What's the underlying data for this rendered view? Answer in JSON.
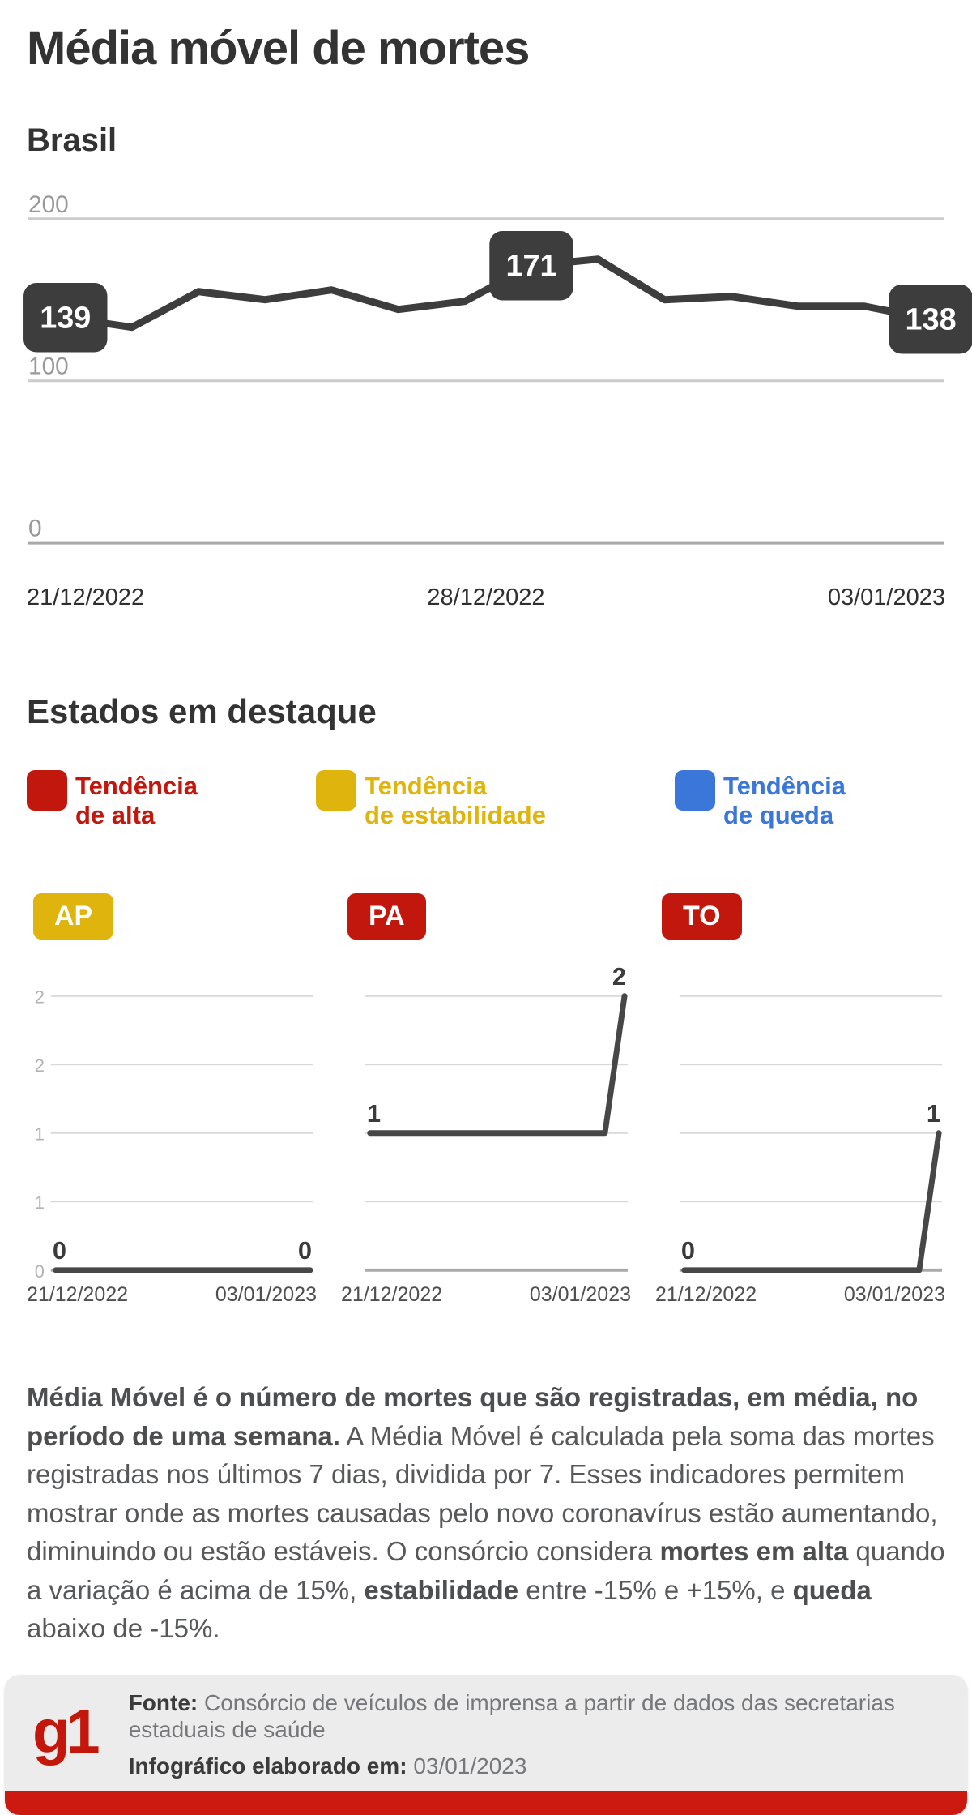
{
  "page": {
    "title": "Média móvel de mortes"
  },
  "colors": {
    "red": "#c2170d",
    "yellow": "#dfb40d",
    "blue": "#3b77d9",
    "line": "#3d3d3d",
    "grid_light": "#cccccc",
    "grid_axis": "#a9a9a9",
    "tick": "#999999",
    "mini_tick": "#b3b3b3",
    "label_dark": "#3b3b3b",
    "footer_bar": "#cc1a10",
    "logo_red": "#c4170c"
  },
  "brasil": {
    "heading": "Brasil",
    "x_labels": [
      "21/12/2022",
      "28/12/2022",
      "03/01/2023"
    ]
  },
  "estados": {
    "heading": "Estados em destaque",
    "legend": [
      {
        "label_line1": "Tendência",
        "label_line2": "de alta",
        "color": "#c2170d"
      },
      {
        "label_line1": "Tendência",
        "label_line2": "de estabilidade",
        "color": "#dfb40d"
      },
      {
        "label_line1": "Tendência",
        "label_line2": "de queda",
        "color": "#3b77d9"
      }
    ],
    "items": [
      {
        "code": "AP",
        "badge_color": "#dfb40d",
        "trend": "estabilidade"
      },
      {
        "code": "PA",
        "badge_color": "#c2170d",
        "trend": "alta"
      },
      {
        "code": "TO",
        "badge_color": "#c2170d",
        "trend": "alta"
      }
    ],
    "x_labels": [
      "21/12/2022",
      "03/01/2023"
    ]
  },
  "about": {
    "segments": [
      {
        "text": "Média Móvel é o número de mortes que são registradas, em média, no período de uma semana.",
        "bold": true
      },
      {
        "text": " A Média Móvel é calculada pela soma das mortes registradas nos últimos 7 dias, dividida por 7. Esses indicadores permitem mostrar onde as mortes causadas pelo novo coronavírus estão aumentando, diminuindo ou estão estáveis. O consórcio considera ",
        "bold": false
      },
      {
        "text": "mortes em alta",
        "bold": true
      },
      {
        "text": " quando a variação é acima de 15%, ",
        "bold": false
      },
      {
        "text": "estabilidade",
        "bold": true
      },
      {
        "text": " entre -15% e +15%, e ",
        "bold": false
      },
      {
        "text": "queda",
        "bold": true
      },
      {
        "text": " abaixo de -15%.",
        "bold": false
      }
    ]
  },
  "footer": {
    "logo": "g1",
    "fonte_label": "Fonte:",
    "fonte_text": "Consórcio de veículos de imprensa a partir de dados das secretarias estaduais de saúde",
    "info_label": "Infográfico elaborado em:",
    "info_value": "03/01/2023"
  },
  "chart_data": [
    {
      "type": "line",
      "title": "Brasil",
      "x_labels": [
        "21/12/2022",
        "28/12/2022",
        "03/01/2023"
      ],
      "ylim": [
        0,
        200
      ],
      "yticks": [
        200,
        100,
        0
      ],
      "ytick_labels": [
        "200",
        "100",
        "0"
      ],
      "values": [
        139,
        133,
        155,
        150,
        156,
        144,
        149,
        171,
        175,
        150,
        152,
        146,
        146,
        138
      ],
      "point_labels": [
        {
          "index": 0,
          "label": "139"
        },
        {
          "index": 7,
          "label": "171"
        },
        {
          "index": 13,
          "label": "138"
        }
      ],
      "grid": true,
      "legend_position": "none"
    },
    {
      "type": "line",
      "title": "AP",
      "trend": "estabilidade",
      "x_labels": [
        "21/12/2022",
        "03/01/2023"
      ],
      "ylim": [
        0,
        2
      ],
      "yticks": [
        2,
        1.5,
        1,
        0.5,
        0
      ],
      "ytick_labels": [
        "2",
        "2",
        "1",
        "1",
        "0"
      ],
      "show_yticks": true,
      "values": [
        0,
        0,
        0,
        0,
        0,
        0,
        0,
        0,
        0,
        0,
        0,
        0,
        0,
        0
      ],
      "start_label": "0",
      "end_label": "0",
      "grid": true
    },
    {
      "type": "line",
      "title": "PA",
      "trend": "alta",
      "x_labels": [
        "21/12/2022",
        "03/01/2023"
      ],
      "ylim": [
        0,
        2
      ],
      "yticks": [
        2,
        1.5,
        1,
        0.5,
        0
      ],
      "show_yticks": false,
      "values": [
        1,
        1,
        1,
        1,
        1,
        1,
        1,
        1,
        1,
        1,
        1,
        1,
        1,
        2
      ],
      "start_label": "1",
      "end_label": "2",
      "grid": true
    },
    {
      "type": "line",
      "title": "TO",
      "trend": "alta",
      "x_labels": [
        "21/12/2022",
        "03/01/2023"
      ],
      "ylim": [
        0,
        2
      ],
      "yticks": [
        2,
        1.5,
        1,
        0.5,
        0
      ],
      "show_yticks": false,
      "values": [
        0,
        0,
        0,
        0,
        0,
        0,
        0,
        0,
        0,
        0,
        0,
        0,
        0,
        1
      ],
      "start_label": "0",
      "end_label": "1",
      "grid": true
    }
  ]
}
